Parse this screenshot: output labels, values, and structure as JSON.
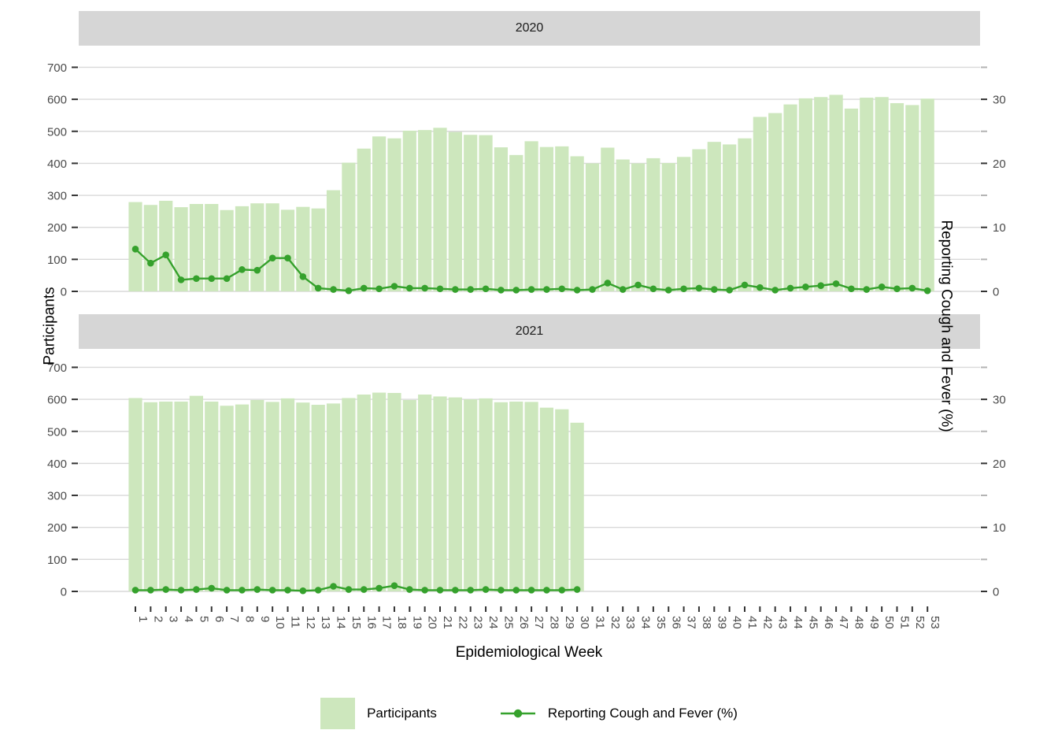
{
  "chart_data": {
    "type": "bar",
    "subtype": "dual-axis bar+line, faceted by year",
    "title": "",
    "xlabel": "Epidemiological Week",
    "x_ticks": [
      "1",
      "2",
      "3",
      "4",
      "5",
      "6",
      "7",
      "8",
      "9",
      "10",
      "11",
      "12",
      "13",
      "14",
      "15",
      "16",
      "17",
      "18",
      "19",
      "20",
      "21",
      "22",
      "23",
      "24",
      "25",
      "26",
      "27",
      "28",
      "29",
      "30",
      "31",
      "32",
      "33",
      "34",
      "35",
      "36",
      "37",
      "38",
      "39",
      "40",
      "41",
      "42",
      "43",
      "44",
      "45",
      "46",
      "47",
      "48",
      "49",
      "50",
      "51",
      "52",
      "53"
    ],
    "left_axis": {
      "title": "Participants",
      "tick_labels": [
        "700",
        "600",
        "500",
        "400",
        "300",
        "200",
        "100",
        "0"
      ],
      "tick_values": [
        700,
        600,
        500,
        400,
        300,
        200,
        100,
        0
      ],
      "range": [
        0,
        700
      ],
      "grid": "on"
    },
    "right_axis": {
      "title": "Reporting Cough and Fever (%)",
      "tick_labels": [
        "30",
        "20",
        "10",
        "0"
      ],
      "tick_values": [
        30,
        20,
        10,
        0
      ],
      "range": [
        0,
        35
      ],
      "scale_participants_per_percent": 20
    },
    "facets": [
      {
        "label": "2020",
        "weeks": [
          1,
          2,
          3,
          4,
          5,
          6,
          7,
          8,
          9,
          10,
          11,
          12,
          13,
          14,
          15,
          16,
          17,
          18,
          19,
          20,
          21,
          22,
          23,
          24,
          25,
          26,
          27,
          28,
          29,
          30,
          31,
          32,
          33,
          34,
          35,
          36,
          37,
          38,
          39,
          40,
          41,
          42,
          43,
          44,
          45,
          46,
          47,
          48,
          49,
          50,
          51,
          52,
          53
        ],
        "series": [
          {
            "name": "Participants",
            "values": [
              279,
              270,
              283,
              263,
              273,
              273,
              254,
              266,
              275,
              275,
              255,
              264,
              259,
              316,
              402,
              446,
              484,
              478,
              502,
              504,
              511,
              498,
              489,
              488,
              450,
              426,
              469,
              451,
              453,
              422,
              400,
              449,
              412,
              400,
              416,
              401,
              420,
              444,
              467,
              459,
              478,
              545,
              557,
              584,
              603,
              607,
              614,
              571,
              605,
              607,
              588,
              582,
              602
            ]
          },
          {
            "name": "Reporting Cough and Fever (%)",
            "values": [
              6.6,
              4.4,
              5.7,
              1.8,
              2.0,
              2.0,
              2.0,
              3.4,
              3.3,
              5.2,
              5.2,
              2.3,
              0.5,
              0.3,
              0.1,
              0.5,
              0.4,
              0.8,
              0.5,
              0.5,
              0.4,
              0.3,
              0.3,
              0.4,
              0.2,
              0.2,
              0.3,
              0.3,
              0.4,
              0.2,
              0.3,
              1.3,
              0.3,
              1.0,
              0.4,
              0.2,
              0.4,
              0.5,
              0.3,
              0.2,
              1.0,
              0.6,
              0.2,
              0.5,
              0.7,
              0.9,
              1.2,
              0.4,
              0.3,
              0.7,
              0.4,
              0.5,
              0.1
            ]
          }
        ]
      },
      {
        "label": "2021",
        "weeks": [
          1,
          2,
          3,
          4,
          5,
          6,
          7,
          8,
          9,
          10,
          11,
          12,
          13,
          14,
          15,
          16,
          17,
          18,
          19,
          20,
          21,
          22,
          23,
          24,
          25,
          26,
          27,
          28,
          29,
          30
        ],
        "series": [
          {
            "name": "Participants",
            "values": [
              604,
              591,
              593,
              593,
              611,
              593,
              580,
              584,
              598,
              592,
              603,
              590,
              583,
              587,
              604,
              615,
              621,
              620,
              598,
              615,
              609,
              606,
              600,
              603,
              591,
              593,
              592,
              574,
              569,
              527
            ]
          },
          {
            "name": "Reporting Cough and Fever (%)",
            "values": [
              0.2,
              0.2,
              0.3,
              0.2,
              0.3,
              0.5,
              0.2,
              0.2,
              0.3,
              0.2,
              0.2,
              0.1,
              0.2,
              0.8,
              0.3,
              0.3,
              0.5,
              0.9,
              0.3,
              0.2,
              0.2,
              0.2,
              0.2,
              0.3,
              0.2,
              0.2,
              0.2,
              0.2,
              0.2,
              0.3
            ]
          }
        ]
      }
    ],
    "legend": {
      "position": "bottom",
      "items": [
        {
          "label": "Participants",
          "symbol": "filled-square"
        },
        {
          "label": "Reporting Cough and Fever (%)",
          "symbol": "line-with-point"
        }
      ]
    },
    "colors": {
      "bar_fill": "#cde7bd",
      "line": "#35a12c",
      "point": "#35a12c",
      "grid": "#d9d9d9",
      "strip_background": "#d6d6d6",
      "strip_text": "#1a1a1a",
      "tick_label": "#4a4a4a",
      "tick_mark": "#333333",
      "minor_tick_mark": "#b3b3b3",
      "axis_title": "#000000",
      "panel_background": "#ffffff"
    }
  }
}
